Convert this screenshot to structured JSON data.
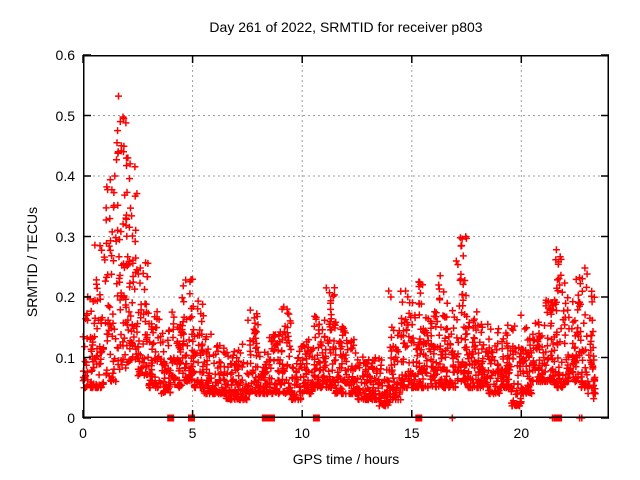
{
  "chart_data": {
    "type": "scatter",
    "title": "Day 261 of 2022, SRMTID for receiver p803",
    "xlabel": "GPS time / hours",
    "ylabel": "SRMTID / TECUs",
    "xlim": [
      0,
      24
    ],
    "ylim": [
      0,
      0.6
    ],
    "xticks": {
      "values": [
        0,
        5,
        10,
        15,
        20
      ],
      "labels": [
        "0",
        "5",
        "10",
        "15",
        "20"
      ]
    },
    "yticks": {
      "values": [
        0,
        0.1,
        0.2,
        0.3,
        0.4,
        0.5,
        0.6
      ],
      "labels": [
        "0",
        "0.1",
        "0.2",
        "0.3",
        "0.4",
        "0.5",
        "0.6"
      ]
    },
    "grid": true,
    "legend": "none",
    "colors": {
      "marker": "#ff0000",
      "grid": "#9e9e9e",
      "border": "#000000",
      "text": "#000000",
      "background": "#ffffff"
    },
    "marker": {
      "shape": "plus",
      "size": 7,
      "stroke": 1.5
    },
    "series": [
      {
        "name": "srmtid-scatter",
        "kind": "binned-scatter",
        "seed": 261,
        "note": "dense + markers; bins = [start_hour, width_h, n_points, y_min, y_max, density_shape_k]; cloud sits 0.03-0.2 TECUs all day, large spike 1.2-2.5 h peaking 0.53, lulls near 7 h and 13.5-14 h, secondary spikes near 11, 15.3, 17.3, 21.6, 22.9 h",
        "bins": [
          [
            0.0,
            0.5,
            48,
            0.05,
            0.21,
            1.7
          ],
          [
            0.5,
            0.5,
            50,
            0.05,
            0.3,
            2.0
          ],
          [
            1.0,
            0.5,
            52,
            0.06,
            0.4,
            1.7
          ],
          [
            1.5,
            0.5,
            58,
            0.08,
            0.52,
            1.4
          ],
          [
            2.0,
            0.5,
            56,
            0.09,
            0.43,
            1.5
          ],
          [
            2.5,
            0.5,
            50,
            0.07,
            0.26,
            1.8
          ],
          [
            3.0,
            0.5,
            50,
            0.05,
            0.18,
            1.8
          ],
          [
            3.5,
            0.5,
            46,
            0.04,
            0.15,
            1.8
          ],
          [
            4.0,
            0.5,
            48,
            0.05,
            0.18,
            1.9
          ],
          [
            4.5,
            0.5,
            52,
            0.06,
            0.23,
            2.0
          ],
          [
            5.0,
            0.5,
            52,
            0.05,
            0.21,
            2.0
          ],
          [
            5.5,
            0.5,
            46,
            0.04,
            0.14,
            1.9
          ],
          [
            6.0,
            0.5,
            46,
            0.04,
            0.12,
            1.8
          ],
          [
            6.5,
            0.5,
            46,
            0.03,
            0.11,
            1.8
          ],
          [
            7.0,
            0.5,
            48,
            0.03,
            0.13,
            1.9
          ],
          [
            7.5,
            0.5,
            52,
            0.04,
            0.18,
            2.1
          ],
          [
            8.0,
            0.5,
            48,
            0.04,
            0.13,
            1.9
          ],
          [
            8.5,
            0.5,
            48,
            0.04,
            0.14,
            1.9
          ],
          [
            9.0,
            0.5,
            52,
            0.04,
            0.19,
            2.1
          ],
          [
            9.5,
            0.5,
            46,
            0.03,
            0.12,
            1.8
          ],
          [
            10.0,
            0.5,
            48,
            0.04,
            0.13,
            1.8
          ],
          [
            10.5,
            0.5,
            52,
            0.05,
            0.17,
            1.9
          ],
          [
            11.0,
            0.5,
            56,
            0.05,
            0.22,
            1.8
          ],
          [
            11.5,
            0.5,
            50,
            0.04,
            0.16,
            1.9
          ],
          [
            12.0,
            0.5,
            50,
            0.04,
            0.13,
            1.8
          ],
          [
            12.5,
            0.5,
            46,
            0.03,
            0.11,
            1.8
          ],
          [
            13.0,
            0.5,
            46,
            0.03,
            0.1,
            1.8
          ],
          [
            13.5,
            0.5,
            46,
            0.02,
            0.1,
            1.8
          ],
          [
            14.0,
            0.5,
            50,
            0.03,
            0.15,
            1.9
          ],
          [
            14.5,
            0.5,
            52,
            0.05,
            0.21,
            2.1
          ],
          [
            15.0,
            0.5,
            56,
            0.05,
            0.23,
            2.0
          ],
          [
            15.5,
            0.5,
            50,
            0.05,
            0.18,
            2.0
          ],
          [
            16.0,
            0.5,
            52,
            0.05,
            0.22,
            2.0
          ],
          [
            16.5,
            0.5,
            50,
            0.05,
            0.19,
            2.0
          ],
          [
            17.0,
            0.5,
            56,
            0.06,
            0.3,
            1.8
          ],
          [
            17.5,
            0.5,
            50,
            0.05,
            0.18,
            2.0
          ],
          [
            18.0,
            0.5,
            50,
            0.05,
            0.16,
            2.0
          ],
          [
            18.5,
            0.5,
            46,
            0.04,
            0.15,
            2.0
          ],
          [
            19.0,
            0.5,
            50,
            0.05,
            0.16,
            2.0
          ],
          [
            19.5,
            0.5,
            50,
            0.02,
            0.17,
            2.1
          ],
          [
            20.0,
            0.5,
            50,
            0.04,
            0.15,
            2.0
          ],
          [
            20.5,
            0.5,
            50,
            0.06,
            0.17,
            2.0
          ],
          [
            21.0,
            0.5,
            52,
            0.06,
            0.2,
            2.0
          ],
          [
            21.5,
            0.5,
            56,
            0.05,
            0.27,
            2.2
          ],
          [
            22.0,
            0.5,
            50,
            0.06,
            0.2,
            2.0
          ],
          [
            22.5,
            0.5,
            52,
            0.05,
            0.24,
            2.2
          ],
          [
            23.0,
            0.38,
            40,
            0.04,
            0.21,
            2.0
          ]
        ],
        "outliers": [
          [
            1.62,
            0.532
          ],
          [
            1.7,
            0.49
          ],
          [
            1.58,
            0.475
          ],
          [
            1.55,
            0.455
          ],
          [
            1.75,
            0.45
          ],
          [
            1.85,
            0.44
          ],
          [
            2.05,
            0.43
          ],
          [
            2.15,
            0.42
          ],
          [
            1.45,
            0.4
          ],
          [
            11.1,
            0.215
          ],
          [
            13.95,
            0.21
          ],
          [
            14.05,
            0.2
          ],
          [
            14.72,
            0.21
          ],
          [
            15.32,
            0.225
          ],
          [
            16.3,
            0.235
          ],
          [
            17.22,
            0.298
          ],
          [
            17.28,
            0.285
          ],
          [
            17.35,
            0.268
          ],
          [
            21.6,
            0.278
          ],
          [
            21.7,
            0.258
          ],
          [
            22.9,
            0.248
          ],
          [
            23.0,
            0.238
          ],
          [
            19.95,
            0.025
          ],
          [
            20.02,
            0.042
          ],
          [
            13.8,
            0.022
          ],
          [
            23.3,
            0.032
          ]
        ]
      },
      {
        "name": "flagged-epoch-squares",
        "kind": "filled-squares-on-x-axis",
        "hours": [
          4.0,
          4.95,
          8.32,
          8.42,
          8.52,
          8.6,
          10.65,
          15.32,
          21.62,
          21.7
        ]
      },
      {
        "name": "zero-plus-marks",
        "kind": "plus-markers-at-y-zero",
        "hours": [
          16.85,
          21.42,
          22.66,
          22.76
        ]
      }
    ]
  }
}
